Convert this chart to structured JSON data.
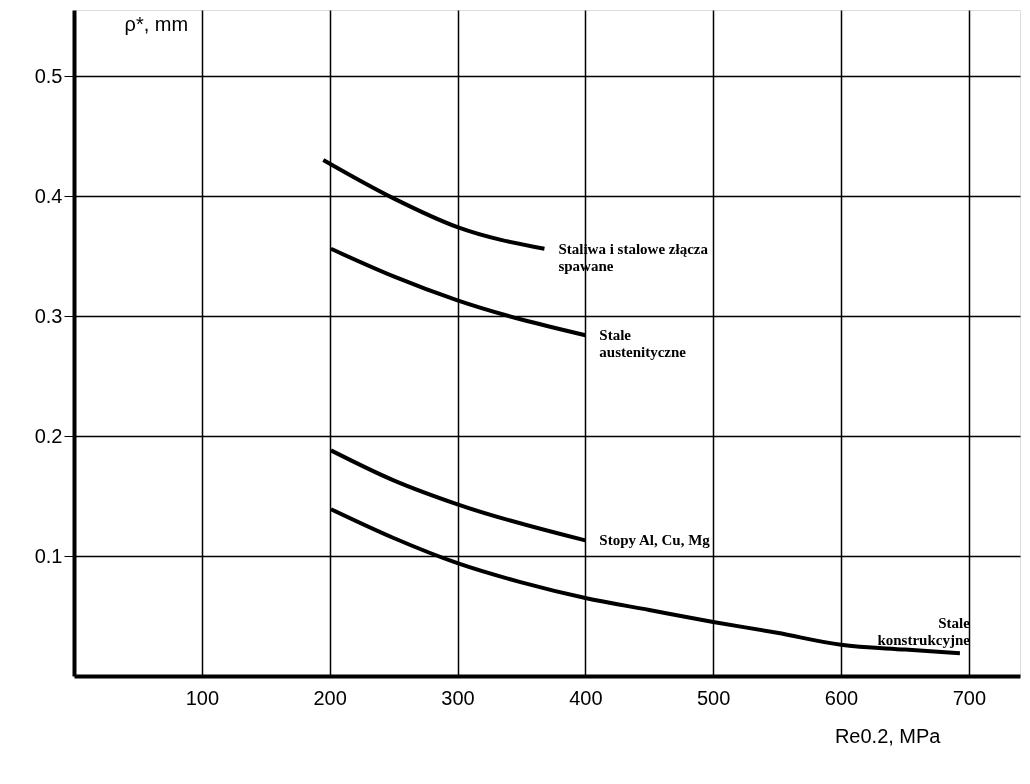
{
  "chart_data": {
    "type": "line",
    "xlabel": "Re0.2, MPa",
    "ylabel": "ρ*, mm",
    "xlim": [
      0,
      740
    ],
    "ylim": [
      0,
      0.555
    ],
    "xticks": [
      100,
      200,
      300,
      400,
      500,
      600,
      700
    ],
    "yticks": [
      0.1,
      0.2,
      0.3,
      0.4,
      0.5
    ],
    "grid": true,
    "marker": "none",
    "line_style": "solid",
    "series": [
      {
        "name": "Staliwa i stalowe złącza\nspawane",
        "color": "#000000",
        "x": [
          195,
          250,
          300,
          368
        ],
        "values": [
          0.43,
          0.398,
          0.374,
          0.356
        ]
      },
      {
        "name": "Stale\naustenityczne",
        "color": "#000000",
        "x": [
          201,
          250,
          300,
          400
        ],
        "values": [
          0.356,
          0.333,
          0.313,
          0.284
        ]
      },
      {
        "name": "Stopy Al, Cu, Mg",
        "color": "#000000",
        "x": [
          201,
          250,
          300,
          400
        ],
        "values": [
          0.188,
          0.163,
          0.143,
          0.113
        ]
      },
      {
        "name": "Stale\nkonstrukcyjne",
        "color": "#000000",
        "x": [
          201,
          250,
          300,
          350,
          400,
          450,
          500,
          550,
          600,
          650,
          693
        ],
        "values": [
          0.139,
          0.115,
          0.094,
          0.078,
          0.065,
          0.055,
          0.045,
          0.036,
          0.026,
          0.022,
          0.019
        ]
      }
    ]
  }
}
